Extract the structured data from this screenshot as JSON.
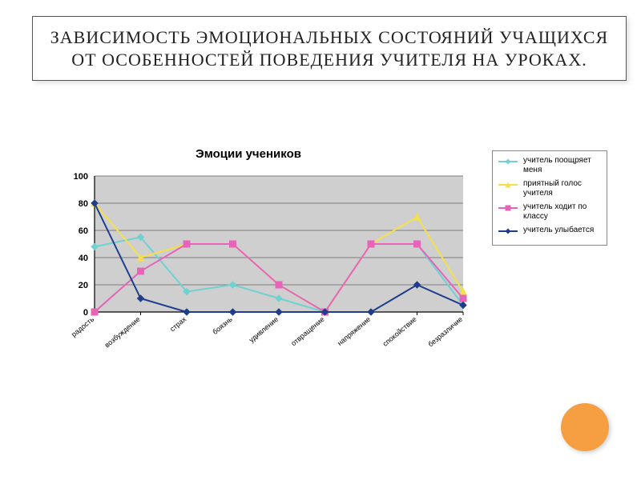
{
  "title": "ЗАВИСИМОСТЬ ЭМОЦИОНАЛЬНЫХ СОСТОЯНИЙ УЧАЩИХСЯ ОТ ОСОБЕННОСТЕЙ ПОВЕДЕНИЯ УЧИТЕЛЯ НА УРОКАХ.",
  "chart": {
    "type": "line",
    "title": "Эмоции учеников",
    "categories": [
      "радость",
      "возбуждение",
      "страх",
      "боязнь",
      "удивление",
      "отвращение",
      "напряжение",
      "спокойствие",
      "безразличие"
    ],
    "ylim": [
      0,
      100
    ],
    "ytick_step": 20,
    "plot_background": "#cfcfcf",
    "grid_color": "#7d7d7d",
    "axis_color": "#000000",
    "xlabel_fontsize": 9,
    "ylabel_fontsize": 11,
    "line_width": 2,
    "marker_size": 4,
    "series": [
      {
        "label": "учитель поощряет меня",
        "color": "#6fd1d1",
        "marker": "diamond",
        "values": [
          48,
          55,
          15,
          20,
          10,
          0,
          50,
          50,
          5
        ]
      },
      {
        "label": "приятный голос учителя",
        "color": "#f3e04a",
        "marker": "triangle",
        "values": [
          80,
          40,
          50,
          50,
          20,
          0,
          50,
          70,
          15
        ]
      },
      {
        "label": "учитель ходит по классу",
        "color": "#e764b8",
        "marker": "square",
        "values": [
          0,
          30,
          50,
          50,
          20,
          0,
          50,
          50,
          10
        ]
      },
      {
        "label": "учитель улыбается",
        "color": "#1f3d8a",
        "marker": "diamond",
        "values": [
          80,
          10,
          0,
          0,
          0,
          0,
          0,
          20,
          5
        ]
      }
    ]
  },
  "accent_circle_color": "#f59e42"
}
